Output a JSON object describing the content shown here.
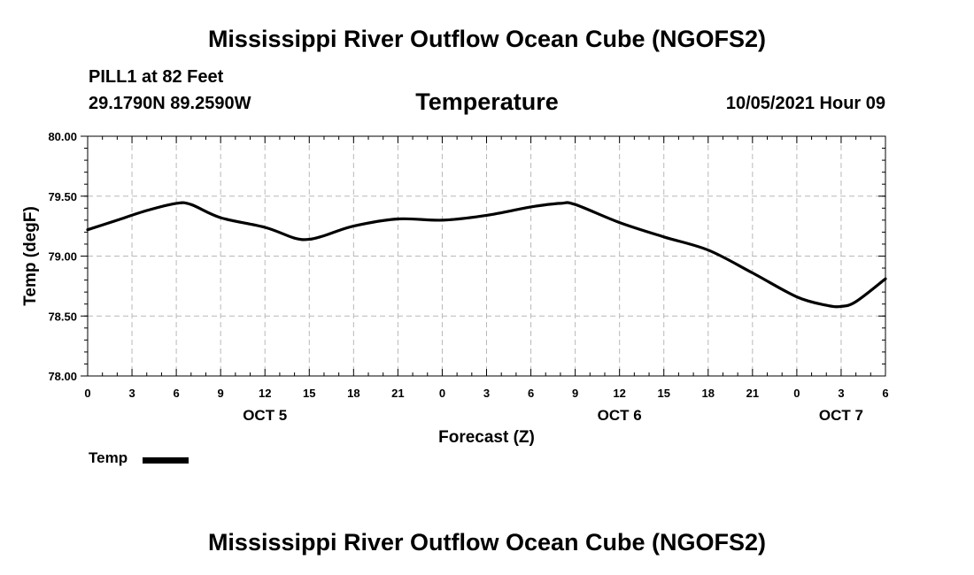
{
  "header": {
    "title": "Mississippi River Outflow Ocean Cube (NGOFS2)",
    "station": "PILL1 at 82 Feet",
    "coordinates": "29.1790N  89.2590W",
    "subtitle": "Temperature",
    "datetime": "10/05/2021 Hour 09"
  },
  "footer": {
    "title": "Mississippi River Outflow Ocean Cube (NGOFS2)"
  },
  "legend": {
    "label": "Temp",
    "color": "#000000"
  },
  "chart_data": {
    "type": "line",
    "title": "Temperature",
    "xlabel": "Forecast (Z)",
    "ylabel": "Temp (degF)",
    "ylim": [
      78.0,
      80.0
    ],
    "y_ticks": [
      "78.00",
      "78.50",
      "79.00",
      "79.50",
      "80.00"
    ],
    "xlim": [
      0,
      54
    ],
    "x_ticks": [
      0,
      3,
      6,
      9,
      12,
      15,
      18,
      21,
      24,
      27,
      30,
      33,
      36,
      39,
      42,
      45,
      48,
      51,
      54
    ],
    "x_tick_labels": [
      "0",
      "3",
      "6",
      "9",
      "12",
      "15",
      "18",
      "21",
      "0",
      "3",
      "6",
      "9",
      "12",
      "15",
      "18",
      "21",
      "0",
      "3",
      "6"
    ],
    "date_labels": [
      {
        "label": "OCT 5",
        "x": 12
      },
      {
        "label": "OCT 6",
        "x": 36
      },
      {
        "label": "OCT 7",
        "x": 51
      }
    ],
    "grid": true,
    "series": [
      {
        "name": "Temp",
        "color": "#000000",
        "x": [
          0,
          2,
          4,
          6,
          7,
          9,
          12,
          14,
          15,
          16,
          18,
          21,
          24,
          27,
          30,
          32,
          33,
          36,
          39,
          42,
          45,
          48,
          50,
          51,
          52,
          54
        ],
        "values": [
          79.22,
          79.3,
          79.38,
          79.44,
          79.43,
          79.32,
          79.24,
          79.15,
          79.14,
          79.17,
          79.25,
          79.31,
          79.3,
          79.34,
          79.41,
          79.44,
          79.43,
          79.28,
          79.16,
          79.05,
          78.86,
          78.66,
          78.59,
          78.58,
          78.62,
          78.81
        ]
      }
    ]
  }
}
